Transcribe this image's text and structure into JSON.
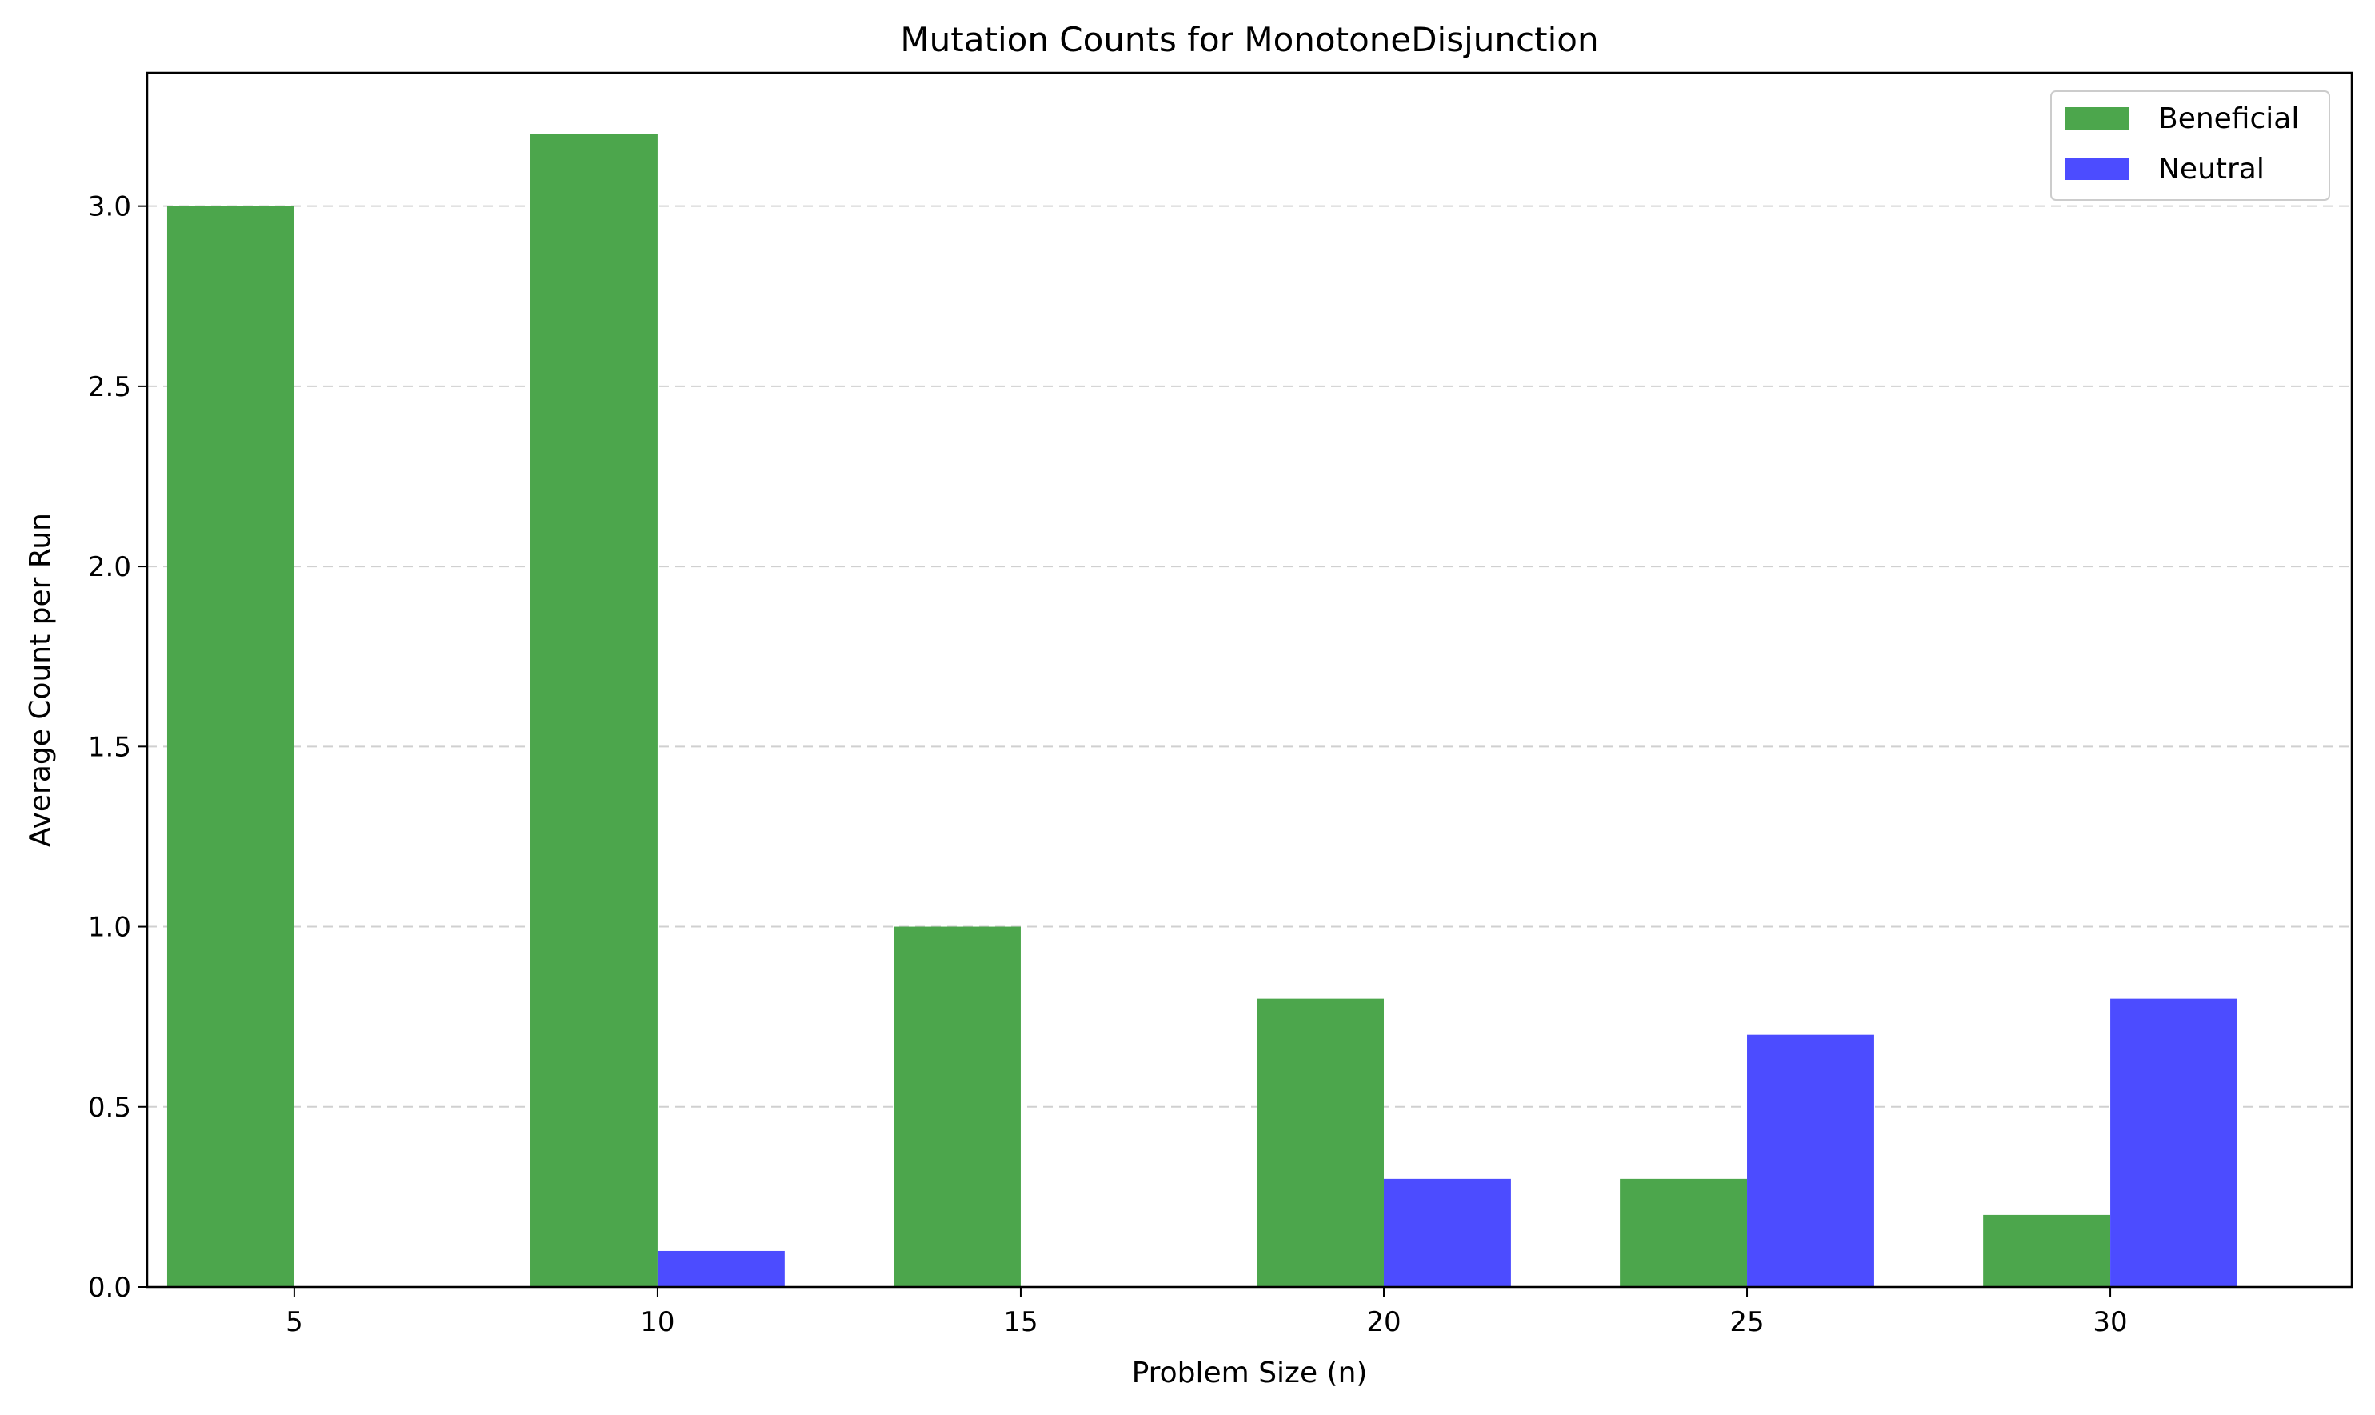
{
  "chart_data": {
    "type": "bar",
    "title": "Mutation Counts for MonotoneDisjunction",
    "xlabel": "Problem Size (n)",
    "ylabel": "Average Count per Run",
    "categories": [
      "5",
      "10",
      "15",
      "20",
      "25",
      "30"
    ],
    "series": [
      {
        "name": "Beneficial",
        "color": "#4ca64c",
        "values": [
          3.0,
          3.2,
          1.0,
          0.8,
          0.3,
          0.2
        ]
      },
      {
        "name": "Neutral",
        "color": "#4c4cff",
        "values": [
          0.0,
          0.1,
          0.0,
          0.3,
          0.7,
          0.8
        ]
      }
    ],
    "ylim": [
      0,
      3.37
    ],
    "yticks": [
      "0.0",
      "0.5",
      "1.0",
      "1.5",
      "2.0",
      "2.5",
      "3.0"
    ],
    "grid": "horizontal-dashed",
    "legend_position": "top-right"
  }
}
